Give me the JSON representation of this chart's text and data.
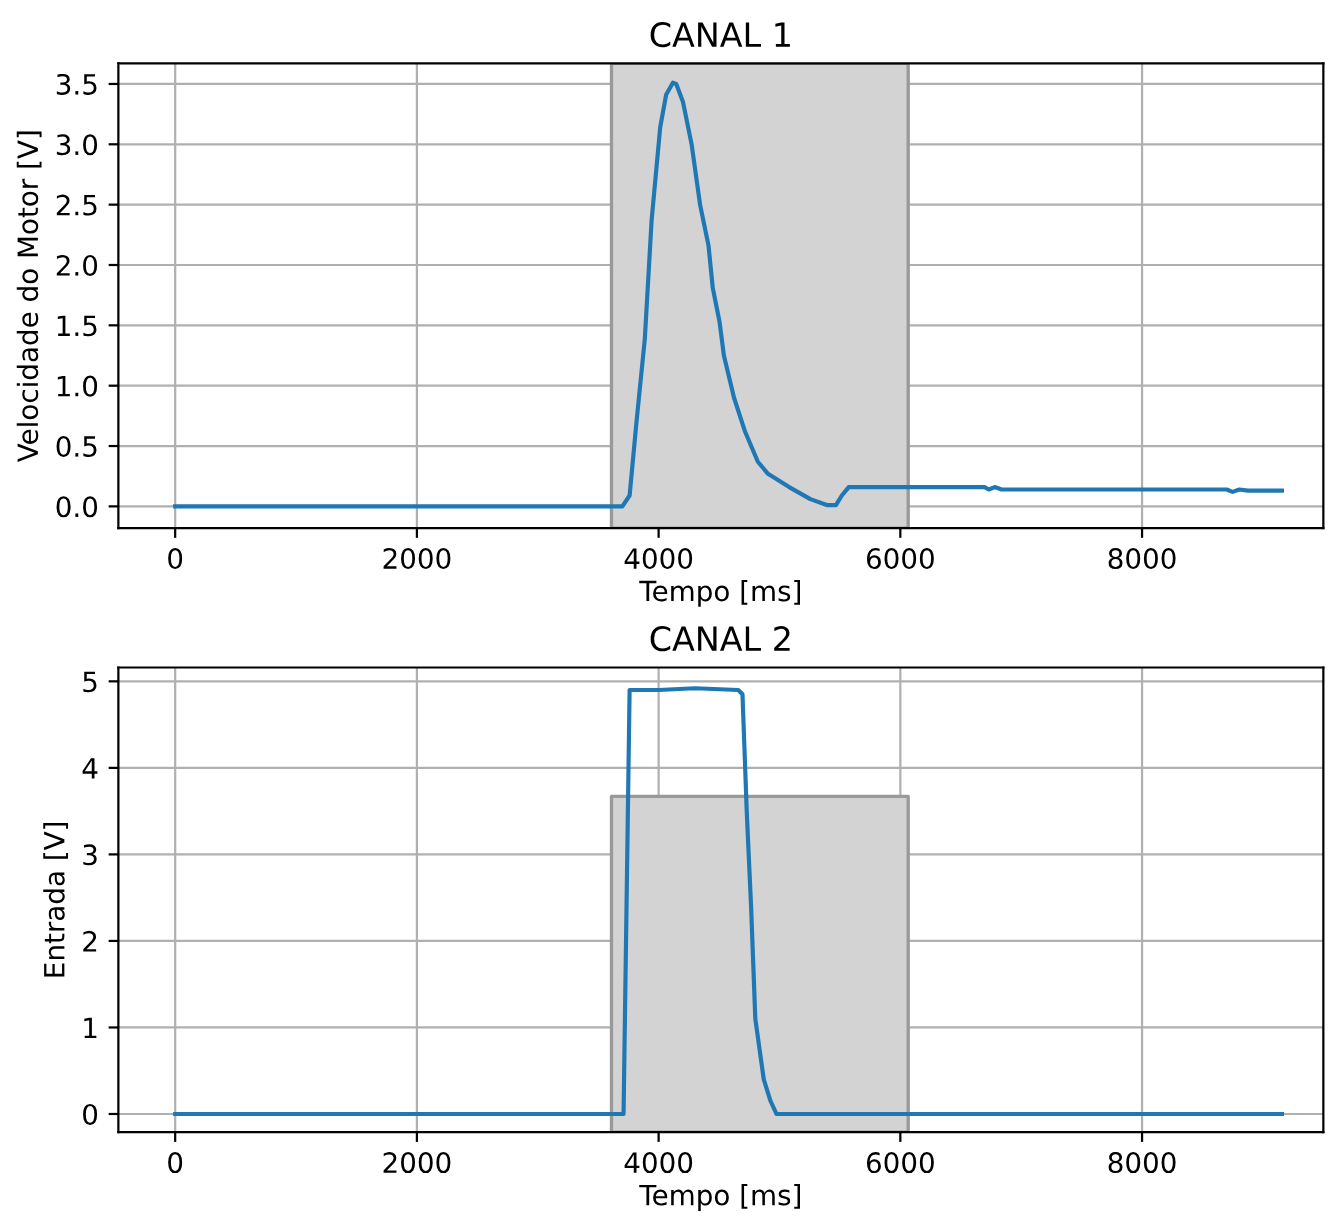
{
  "chart_data": [
    {
      "type": "line",
      "title": "CANAL 1",
      "xlabel": "Tempo [ms]",
      "ylabel": "Velocidade do Motor [V]",
      "xlim": [
        -470,
        9500
      ],
      "xticks": [
        0,
        2000,
        4000,
        6000,
        8000
      ],
      "ylim": [
        -0.18,
        3.67
      ],
      "yticks": [
        {
          "value": 0,
          "label": "0.0"
        },
        0.5,
        {
          "value": 1,
          "label": "1.0"
        },
        1.5,
        {
          "value": 2,
          "label": "2.0"
        },
        2.5,
        {
          "value": 3,
          "label": "3.0"
        },
        3.5
      ],
      "grid": true,
      "bands": [
        {
          "axis": "x",
          "from": 3610,
          "to": 6065,
          "color": "#d3d3d3"
        }
      ],
      "series": [
        {
          "color": "#1f77b4",
          "x": [
            0,
            3700,
            3760,
            3816,
            3886,
            3942,
            4013,
            4062,
            4118,
            4146,
            4202,
            4273,
            4343,
            4413,
            4448,
            4504,
            4540,
            4624,
            4715,
            4821,
            4905,
            5080,
            5256,
            5397,
            5467,
            5516,
            5573,
            6697,
            6732,
            6781,
            6838,
            8700,
            8749,
            8805,
            8875,
            9157
          ],
          "values": [
            0,
            0,
            0.09,
            0.69,
            1.39,
            2.37,
            3.14,
            3.41,
            3.51,
            3.5,
            3.35,
            3.0,
            2.5,
            2.16,
            1.81,
            1.53,
            1.25,
            0.9,
            0.62,
            0.37,
            0.27,
            0.16,
            0.06,
            0.01,
            0.01,
            0.09,
            0.16,
            0.16,
            0.14,
            0.16,
            0.14,
            0.14,
            0.12,
            0.14,
            0.13,
            0.13
          ]
        }
      ]
    },
    {
      "type": "line",
      "title": "CANAL 2",
      "xlabel": "Tempo [ms]",
      "ylabel": "Entrada [V]",
      "xlim": [
        -470,
        9500
      ],
      "xticks": [
        0,
        2000,
        4000,
        6000,
        8000
      ],
      "ylim": [
        -0.21,
        5.16
      ],
      "yticks": [
        0,
        1,
        2,
        3,
        4,
        5
      ],
      "grid": true,
      "bands": [
        {
          "axis": "x",
          "from": 3610,
          "to": 6065,
          "color": "#d3d3d3"
        }
      ],
      "series": [
        {
          "color": "#1f77b4",
          "x": [
            0,
            3710,
            3760,
            4000,
            4300,
            4659,
            4694,
            4729,
            4765,
            4800,
            4870,
            4926,
            4975,
            9157
          ],
          "values": [
            0,
            0,
            4.9,
            4.9,
            4.92,
            4.9,
            4.85,
            3.5,
            2.4,
            1.1,
            0.4,
            0.15,
            0,
            0
          ]
        }
      ]
    }
  ]
}
